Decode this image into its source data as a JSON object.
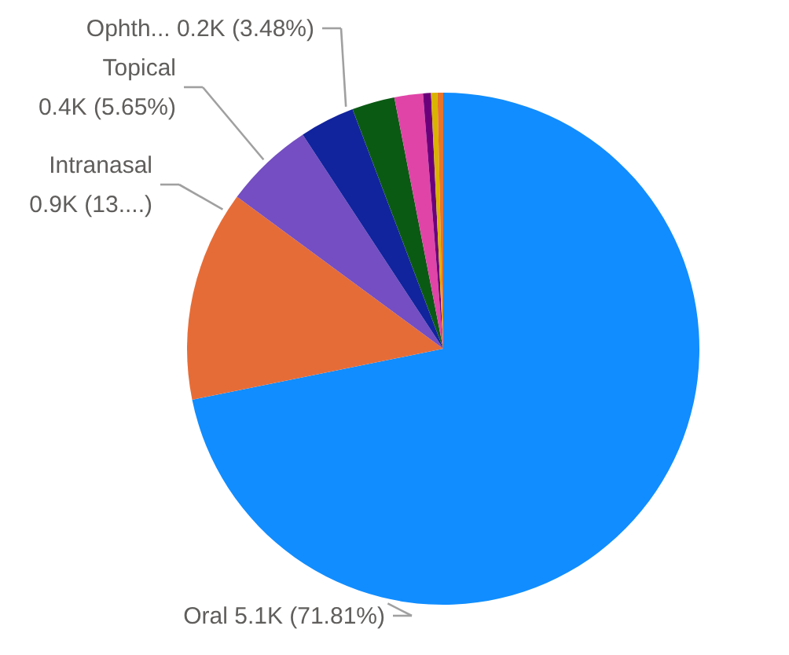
{
  "chart_data": {
    "type": "pie",
    "categories": [
      "Oral",
      "Intranasal",
      "Topical",
      "Ophth...",
      null,
      null,
      null,
      null,
      null
    ],
    "values": [
      71.81,
      13.3,
      5.65,
      3.48,
      2.7,
      1.8,
      0.5,
      0.4,
      0.36
    ],
    "colors": [
      "#118dff",
      "#e66c37",
      "#744ec2",
      "#12239e",
      "#0b5a14",
      "#e044a7",
      "#6b007b",
      "#d9b300",
      "#e8742a"
    ],
    "value_labels": [
      "5.1K (71.81%)",
      "0.9K (13....)",
      "0.4K (5.65%)",
      "0.2K (3.48%)",
      null,
      null,
      null,
      null,
      null
    ]
  }
}
